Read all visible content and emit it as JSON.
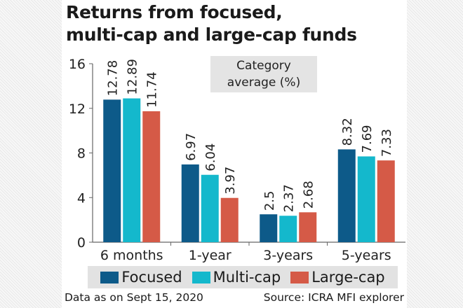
{
  "chart_data": {
    "type": "bar",
    "title": "Returns from focused, multi-cap and large-cap funds",
    "title_lines": [
      "Returns from focused,",
      "multi-cap and large-cap funds"
    ],
    "annotation_lines": [
      "Category",
      "average (%)"
    ],
    "categories": [
      "6 months",
      "1-year",
      "3-years",
      "5-years"
    ],
    "series": [
      {
        "name": "Focused",
        "color": "#0d5a89",
        "values": [
          12.78,
          6.97,
          2.5,
          8.32
        ],
        "labels": [
          "12.78",
          "6.97",
          "2.5",
          "8.32"
        ]
      },
      {
        "name": "Multi-cap",
        "color": "#14b8cc",
        "values": [
          12.89,
          6.04,
          2.37,
          7.69
        ],
        "labels": [
          "12.89",
          "6.04",
          "2.37",
          "7.69"
        ]
      },
      {
        "name": "Large-cap",
        "color": "#d55a47",
        "values": [
          11.74,
          3.97,
          2.68,
          7.33
        ],
        "labels": [
          "11.74",
          "3.97",
          "2.68",
          "7.33"
        ]
      }
    ],
    "yticks": [
      "0",
      "4",
      "8",
      "12",
      "16"
    ],
    "ylim": [
      0,
      16
    ],
    "xlabel": "",
    "ylabel": "",
    "legend": "bottom",
    "footer_left": "Data as on Sept 15, 2020",
    "footer_right": "Source: ICRA MFI explorer"
  }
}
